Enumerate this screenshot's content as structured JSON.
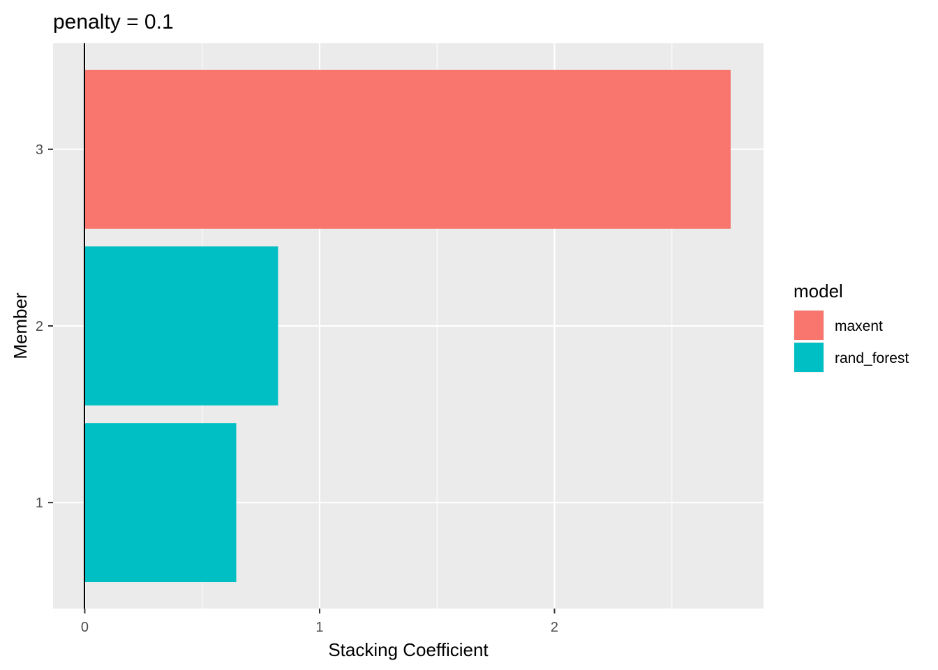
{
  "chart_data": {
    "type": "bar",
    "orientation": "horizontal",
    "title": "penalty = 0.1",
    "xlabel": "Stacking Coefficient",
    "ylabel": "Member",
    "categories": [
      "1",
      "2",
      "3"
    ],
    "values": [
      0.645,
      0.823,
      2.75
    ],
    "groups": [
      "rand_forest",
      "rand_forest",
      "maxent"
    ],
    "xlim": [
      -0.135,
      2.89
    ],
    "xticks": [
      "0",
      "1",
      "2"
    ],
    "reference_line_x": 0,
    "grid": true,
    "legend": {
      "title": "model",
      "position": "right",
      "entries": [
        {
          "label": "maxent",
          "color": "#F8766D"
        },
        {
          "label": "rand_forest",
          "color": "#00BFC4"
        }
      ]
    },
    "colors": {
      "maxent": "#F8766D",
      "rand_forest": "#00BFC4",
      "panel_background": "#EBEBEB",
      "grid": "#FFFFFF"
    }
  }
}
